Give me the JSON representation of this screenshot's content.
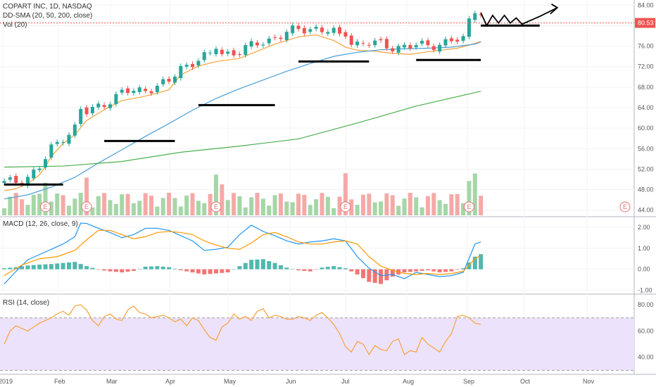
{
  "header": {
    "symbol_line": "COPART INC, 1D, NASDAQ",
    "sma_line": "DD-SMA (20, 50, 200, close)",
    "vol_line": "Vol (20)"
  },
  "macd_label": "MACD (12, 26, close, 9)",
  "rsi_label": "RSI (14, close)",
  "colors": {
    "up": "#26a69a",
    "down": "#ef5350",
    "up_vol": "#a5d6a7",
    "down_vol": "#f5a9a7",
    "sma20": "#f7a23c",
    "sma50": "#4a9fd6",
    "sma200": "#4caf50",
    "macd": "#2196f3",
    "signal": "#ff9800",
    "rsi": "#f7a23c",
    "rsi_band": "#ede2fb",
    "price_line": "#ef5350",
    "drawing": "#000000"
  },
  "chart_data": [
    {
      "type": "line",
      "panel": "price",
      "title": "COPART INC, 1D, NASDAQ",
      "y_ticks": [
        "84.00",
        "80.00",
        "76.00",
        "72.00",
        "68.00",
        "64.00",
        "60.00",
        "56.00",
        "52.00",
        "48.00",
        "44.00"
      ],
      "ylim": [
        43,
        85
      ],
      "current_price_label": "80.53",
      "current_price": 80.53,
      "x_ticks": [
        "2019",
        "Feb",
        "Mar",
        "Apr",
        "May",
        "Jun",
        "Jul",
        "Aug",
        "Sep",
        "Oct",
        "Nov"
      ],
      "earnings_marker": "E",
      "earnings_x_index": [
        7,
        14,
        36,
        58,
        79
      ],
      "series": [
        {
          "name": "SMA 20",
          "x": [
            0,
            2,
            4,
            6,
            7,
            8,
            10,
            12,
            14,
            17,
            20,
            23,
            26,
            28,
            30,
            33,
            36,
            40,
            43,
            46,
            50,
            53,
            56,
            58,
            60,
            63,
            66,
            69,
            72,
            75,
            77,
            79,
            81
          ],
          "values": [
            47.8,
            48.2,
            49.2,
            50.9,
            52.5,
            54.5,
            57.0,
            58.7,
            61.5,
            63.6,
            65.4,
            66.0,
            66.8,
            67.5,
            70.4,
            72.1,
            73.0,
            73.6,
            75.0,
            76.4,
            77.8,
            78.2,
            77.1,
            75.8,
            75.2,
            75.0,
            74.6,
            74.4,
            74.9,
            75.3,
            75.6,
            76.2,
            76.9
          ]
        },
        {
          "name": "SMA 50",
          "x": [
            0,
            4,
            8,
            12,
            16,
            20,
            24,
            28,
            32,
            36,
            40,
            44,
            48,
            52,
            56,
            60,
            64,
            68,
            72,
            76,
            80,
            81
          ],
          "values": [
            46.2,
            47.0,
            48.5,
            50.4,
            53.2,
            55.8,
            58.4,
            60.9,
            63.5,
            65.8,
            67.7,
            69.4,
            71.1,
            72.6,
            74.0,
            74.8,
            75.3,
            75.5,
            75.6,
            75.8,
            76.4,
            76.8
          ]
        },
        {
          "name": "SMA 200",
          "x": [
            0,
            10,
            20,
            30,
            40,
            50,
            60,
            70,
            81
          ],
          "values": [
            52.4,
            52.6,
            53.5,
            55.3,
            56.5,
            57.9,
            61.0,
            64.3,
            67.2
          ]
        }
      ]
    },
    {
      "type": "line",
      "panel": "macd",
      "title": "MACD (12, 26, close, 9)",
      "y_ticks": [
        "2.00",
        "1.00",
        "0.00",
        "-1.00"
      ],
      "ylim": [
        -1.05,
        2.3
      ],
      "series": [
        {
          "name": "MACD",
          "x": [
            0,
            2,
            4,
            6,
            8,
            10,
            12,
            13,
            14,
            16,
            18,
            20,
            22,
            24,
            26,
            28,
            30,
            32,
            34,
            36,
            38,
            40,
            42,
            44,
            46,
            48,
            50,
            52,
            54,
            56,
            58,
            60,
            62,
            64,
            66,
            68,
            70,
            72,
            74,
            76,
            78,
            80,
            81
          ],
          "values": [
            -0.7,
            -0.1,
            0.45,
            0.7,
            0.95,
            1.2,
            1.55,
            2.2,
            2.18,
            1.95,
            1.75,
            1.5,
            1.65,
            1.95,
            1.95,
            1.85,
            1.6,
            1.35,
            0.9,
            0.95,
            1.05,
            1.65,
            2.1,
            1.8,
            1.6,
            1.35,
            1.2,
            1.3,
            1.35,
            1.45,
            1.35,
            0.6,
            0.05,
            -0.3,
            -0.25,
            -0.45,
            -0.15,
            -0.25,
            -0.35,
            -0.3,
            -0.15,
            1.2,
            1.3
          ]
        },
        {
          "name": "Signal",
          "x": [
            0,
            3,
            6,
            9,
            12,
            14,
            16,
            18,
            20,
            22,
            24,
            26,
            28,
            30,
            32,
            34,
            36,
            38,
            40,
            42,
            44,
            46,
            48,
            50,
            52,
            54,
            56,
            58,
            60,
            62,
            64,
            66,
            68,
            70,
            72,
            74,
            76,
            78,
            80,
            81
          ],
          "values": [
            -0.3,
            0.2,
            0.5,
            0.6,
            0.9,
            1.4,
            1.85,
            1.85,
            1.65,
            1.45,
            1.55,
            1.75,
            1.8,
            1.75,
            1.65,
            1.35,
            1.15,
            1.0,
            0.95,
            1.25,
            1.65,
            1.75,
            1.55,
            1.3,
            1.2,
            1.2,
            1.3,
            1.35,
            1.2,
            0.6,
            0.15,
            -0.05,
            -0.2,
            -0.25,
            -0.2,
            -0.25,
            -0.2,
            -0.1,
            0.5,
            0.65
          ]
        },
        {
          "name": "Histogram",
          "x": [
            0,
            2,
            4,
            6,
            8,
            10,
            12,
            14,
            16,
            18,
            20,
            22,
            24,
            26,
            28,
            30,
            32,
            34,
            36,
            38,
            40,
            42,
            44,
            46,
            48,
            50,
            52,
            54,
            56,
            58,
            60,
            62,
            64,
            66,
            68,
            70,
            72,
            74,
            76,
            78,
            80,
            81
          ],
          "values": [
            0.05,
            0.1,
            0.18,
            0.22,
            0.25,
            0.3,
            0.35,
            0.15,
            -0.02,
            -0.1,
            -0.15,
            -0.08,
            0.12,
            0.15,
            0.1,
            -0.05,
            -0.15,
            -0.25,
            -0.2,
            -0.15,
            0.15,
            0.45,
            0.48,
            0.3,
            0.08,
            -0.05,
            -0.1,
            0.08,
            0.15,
            0.05,
            -0.25,
            -0.6,
            -0.7,
            -0.35,
            -0.15,
            -0.1,
            -0.05,
            -0.15,
            -0.1,
            0.05,
            0.6,
            0.72
          ]
        }
      ]
    },
    {
      "type": "line",
      "panel": "rsi",
      "title": "RSI (14, close)",
      "y_ticks": [
        "80.00",
        "60.00",
        "40.00"
      ],
      "ylim": [
        27,
        87
      ],
      "band": [
        30,
        70
      ],
      "series": [
        {
          "name": "RSI",
          "x": [
            0,
            1,
            2,
            3,
            4,
            5,
            6,
            7,
            8,
            9,
            10,
            11,
            12,
            13,
            14,
            15,
            16,
            17,
            18,
            19,
            20,
            21,
            22,
            23,
            24,
            25,
            26,
            27,
            28,
            29,
            30,
            31,
            32,
            33,
            34,
            35,
            36,
            37,
            38,
            39,
            40,
            41,
            42,
            43,
            44,
            45,
            46,
            47,
            48,
            49,
            50,
            51,
            52,
            53,
            54,
            55,
            56,
            57,
            58,
            59,
            60,
            61,
            62,
            63,
            64,
            65,
            66,
            67,
            68,
            69,
            70,
            71,
            72,
            73,
            74,
            75,
            76,
            77,
            78,
            79,
            80,
            81
          ],
          "values": [
            50,
            60,
            64,
            62,
            60,
            63,
            66,
            68,
            70,
            73,
            75,
            72,
            79,
            80,
            76,
            68,
            64,
            71,
            73,
            69,
            68,
            76,
            79,
            74,
            73,
            70,
            71,
            72,
            70,
            67,
            69,
            64,
            70,
            68,
            61,
            55,
            53,
            63,
            66,
            73,
            69,
            71,
            68,
            75,
            77,
            70,
            72,
            71,
            69,
            69,
            71,
            70,
            68,
            72,
            74,
            70,
            65,
            58,
            48,
            44,
            52,
            50,
            42,
            49,
            46,
            45,
            52,
            54,
            42,
            45,
            44,
            55,
            50,
            47,
            44,
            52,
            58,
            71,
            72,
            70,
            66,
            65
          ]
        }
      ]
    }
  ]
}
